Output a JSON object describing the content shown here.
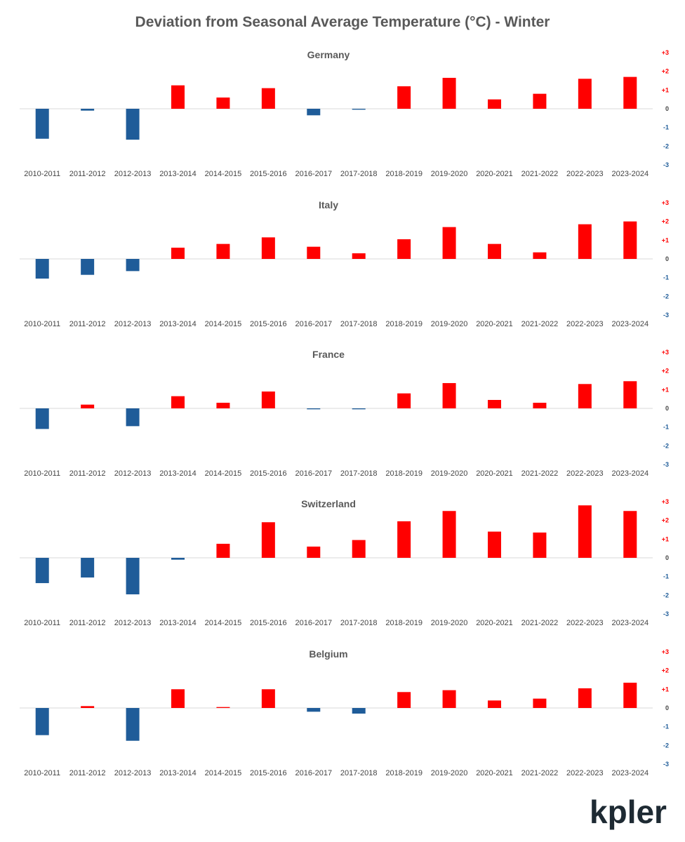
{
  "title": "Deviation from Seasonal Average Temperature (°C) - Winter",
  "logo_text": "kpler",
  "colors": {
    "positive": "#ff0000",
    "negative": "#1f5c99",
    "zero_line": "#d9d9d9",
    "title": "#595959",
    "tick": "#444444",
    "logo": "#1e2a33"
  },
  "chart_data": [
    {
      "type": "bar",
      "title": "Germany",
      "categories": [
        "2010-2011",
        "2011-2012",
        "2012-2013",
        "2013-2014",
        "2014-2015",
        "2015-2016",
        "2016-2017",
        "2017-2018",
        "2018-2019",
        "2019-2020",
        "2020-2021",
        "2021-2022",
        "2022-2023",
        "2023-2024"
      ],
      "values": [
        -1.6,
        -0.1,
        -1.65,
        1.25,
        0.6,
        1.1,
        -0.35,
        -0.05,
        1.2,
        1.65,
        0.5,
        0.8,
        1.6,
        1.7
      ],
      "ylim": [
        -3,
        3
      ],
      "yticks": [
        "+3",
        "+2",
        "+1",
        "0",
        "-1",
        "-2",
        "-3"
      ],
      "xlabel": "",
      "ylabel": ""
    },
    {
      "type": "bar",
      "title": "Italy",
      "categories": [
        "2010-2011",
        "2011-2012",
        "2012-2013",
        "2013-2014",
        "2014-2015",
        "2015-2016",
        "2016-2017",
        "2017-2018",
        "2018-2019",
        "2019-2020",
        "2020-2021",
        "2021-2022",
        "2022-2023",
        "2023-2024"
      ],
      "values": [
        -1.05,
        -0.85,
        -0.65,
        0.6,
        0.8,
        1.15,
        0.65,
        0.3,
        1.05,
        1.7,
        0.8,
        0.35,
        1.85,
        2.0
      ],
      "ylim": [
        -3,
        3
      ],
      "yticks": [
        "+3",
        "+2",
        "+1",
        "0",
        "-1",
        "-2",
        "-3"
      ],
      "xlabel": "",
      "ylabel": ""
    },
    {
      "type": "bar",
      "title": "France",
      "categories": [
        "2010-2011",
        "2011-2012",
        "2012-2013",
        "2013-2014",
        "2014-2015",
        "2015-2016",
        "2016-2017",
        "2017-2018",
        "2018-2019",
        "2019-2020",
        "2020-2021",
        "2021-2022",
        "2022-2023",
        "2023-2024"
      ],
      "values": [
        -1.1,
        0.2,
        -0.95,
        0.65,
        0.3,
        0.9,
        -0.05,
        -0.05,
        0.8,
        1.35,
        0.45,
        0.3,
        1.3,
        1.45
      ],
      "ylim": [
        -3,
        3
      ],
      "yticks": [
        "+3",
        "+2",
        "+1",
        "0",
        "-1",
        "-2",
        "-3"
      ],
      "xlabel": "",
      "ylabel": ""
    },
    {
      "type": "bar",
      "title": "Switzerland",
      "categories": [
        "2010-2011",
        "2011-2012",
        "2012-2013",
        "2013-2014",
        "2014-2015",
        "2015-2016",
        "2016-2017",
        "2017-2018",
        "2018-2019",
        "2019-2020",
        "2020-2021",
        "2021-2022",
        "2022-2023",
        "2023-2024"
      ],
      "values": [
        -1.35,
        -1.05,
        -1.95,
        -0.1,
        0.75,
        1.9,
        0.6,
        0.95,
        1.95,
        2.5,
        1.4,
        1.35,
        2.8,
        2.5
      ],
      "ylim": [
        -3,
        3
      ],
      "yticks": [
        "+3",
        "+2",
        "+1",
        "0",
        "-1",
        "-2",
        "-3"
      ],
      "xlabel": "",
      "ylabel": ""
    },
    {
      "type": "bar",
      "title": "Belgium",
      "categories": [
        "2010-2011",
        "2011-2012",
        "2012-2013",
        "2013-2014",
        "2014-2015",
        "2015-2016",
        "2016-2017",
        "2017-2018",
        "2018-2019",
        "2019-2020",
        "2020-2021",
        "2021-2022",
        "2022-2023",
        "2023-2024"
      ],
      "values": [
        -1.45,
        0.1,
        -1.75,
        1.0,
        0.05,
        1.0,
        -0.2,
        -0.3,
        0.85,
        0.95,
        0.4,
        0.5,
        1.05,
        1.35
      ],
      "ylim": [
        -3,
        3
      ],
      "yticks": [
        "+3",
        "+2",
        "+1",
        "0",
        "-1",
        "-2",
        "-3"
      ],
      "xlabel": "",
      "ylabel": ""
    }
  ]
}
